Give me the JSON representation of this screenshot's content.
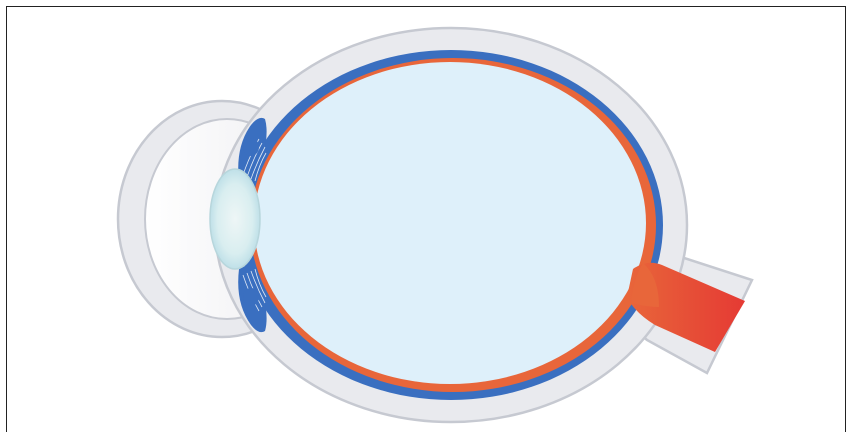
{
  "diagram": {
    "subject": "eye-cross-section",
    "colors": {
      "background": "#ffffff",
      "frame": "#222222",
      "sclera_outline": "#c6c9d1",
      "sclera_fill": "#e9eaee",
      "cornea_fill": "#f6f6f8",
      "choroid": "#3a6fc0",
      "retina": "#e8663a",
      "vitreous": "#def0fa",
      "lens_edge": "#bfe0e8",
      "lens_center": "#eef6f6",
      "optic_nerve_start": "#e8663a",
      "optic_nerve_end": "#e53a34"
    }
  }
}
